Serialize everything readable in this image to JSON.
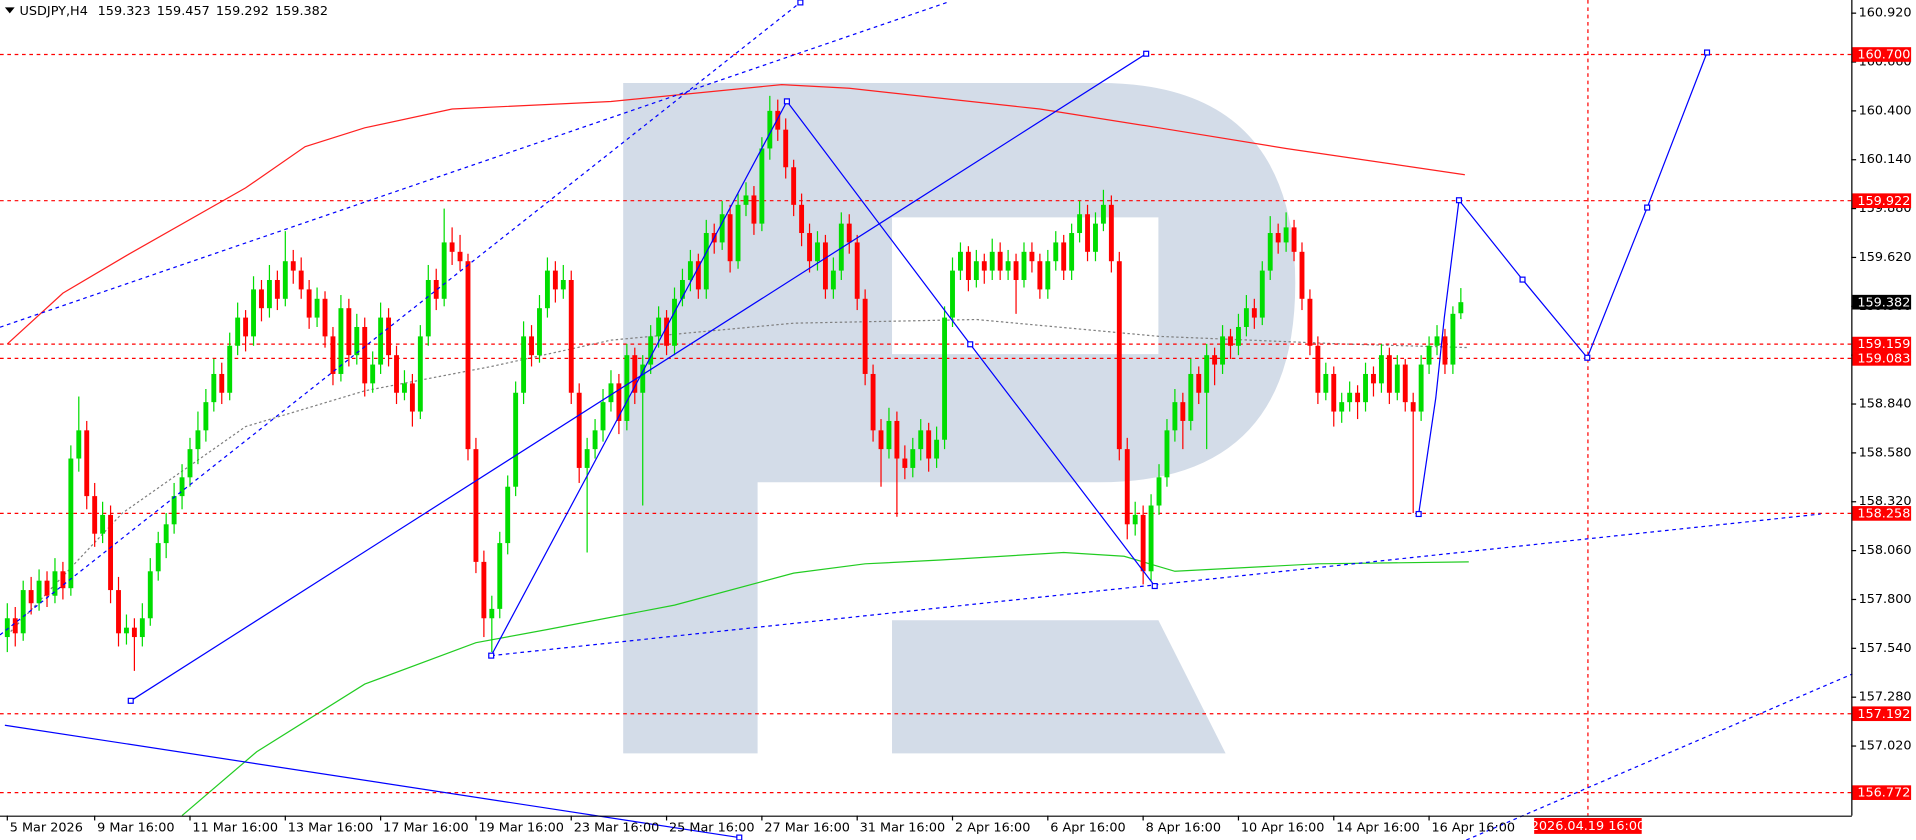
{
  "chart_data": {
    "type": "candlestick",
    "symbol": "USDJPY,H4",
    "up_color": "#00dd00",
    "down_color": "#ff0000",
    "xlim": [
      -0.92,
      232.15
    ],
    "ylim": [
      156.65,
      160.99
    ],
    "xticks": [
      {
        "value": 0,
        "label": "5 Mar 2026"
      },
      {
        "value": 11,
        "label": "9 Mar 16:00"
      },
      {
        "value": 23,
        "label": "11 Mar 16:00"
      },
      {
        "value": 35,
        "label": "13 Mar 16:00"
      },
      {
        "value": 47,
        "label": "17 Mar 16:00"
      },
      {
        "value": 59,
        "label": "19 Mar 16:00"
      },
      {
        "value": 71,
        "label": "23 Mar 16:00"
      },
      {
        "value": 83,
        "label": "25 Mar 16:00"
      },
      {
        "value": 95,
        "label": "27 Mar 16:00"
      },
      {
        "value": 107,
        "label": "31 Mar 16:00"
      },
      {
        "value": 119,
        "label": "2 Apr 16:00"
      },
      {
        "value": 131,
        "label": "6 Apr 16:00"
      },
      {
        "value": 143,
        "label": "8 Apr 16:00"
      },
      {
        "value": 155,
        "label": "10 Apr 16:00"
      },
      {
        "value": 167,
        "label": "14 Apr 16:00"
      },
      {
        "value": 179,
        "label": "16 Apr 16:00"
      }
    ],
    "yticks": [
      {
        "value": 160.92,
        "label": "160.920"
      },
      {
        "value": 160.66,
        "label": "160.660"
      },
      {
        "value": 160.4,
        "label": "160.400"
      },
      {
        "value": 160.14,
        "label": "160.140"
      },
      {
        "value": 159.88,
        "label": "159.880"
      },
      {
        "value": 159.62,
        "label": "159.620"
      },
      {
        "value": 159.36,
        "label": "159.360"
      },
      {
        "value": 159.1,
        "label": "159.100"
      },
      {
        "value": 158.84,
        "label": "158.840"
      },
      {
        "value": 158.58,
        "label": "158.580"
      },
      {
        "value": 158.32,
        "label": "158.320"
      },
      {
        "value": 158.06,
        "label": "158.060"
      },
      {
        "value": 157.8,
        "label": "157.800"
      },
      {
        "value": 157.54,
        "label": "157.540"
      },
      {
        "value": 157.28,
        "label": "157.280"
      },
      {
        "value": 157.02,
        "label": "157.020"
      }
    ],
    "levels": [
      {
        "value": 160.7,
        "label": "160.700"
      },
      {
        "value": 159.922,
        "label": "159.922"
      },
      {
        "value": 159.159,
        "label": "159.159"
      },
      {
        "value": 159.083,
        "label": "159.083"
      },
      {
        "value": 158.258,
        "label": "158.258"
      },
      {
        "value": 157.192,
        "label": "157.192"
      },
      {
        "value": 156.772,
        "label": "156.772"
      }
    ],
    "level_color": "#ff0000",
    "vline": {
      "x": 199,
      "label": "2026.04.19 16:00"
    },
    "overlays": [
      {
        "color": "#ff2020",
        "style": "solid",
        "x": [
          0,
          7,
          15,
          30,
          37.5,
          45,
          56,
          76,
          97.5,
          106,
          130,
          145,
          161,
          183.5
        ],
        "values": [
          159.16,
          159.43,
          159.63,
          159.99,
          160.21,
          160.31,
          160.41,
          160.45,
          160.54,
          160.52,
          160.41,
          160.31,
          160.2,
          160.06
        ]
      },
      {
        "color": "#22cc22",
        "style": "solid",
        "x": [
          22,
          31.4,
          45,
          59,
          68,
          84,
          99,
          108,
          117.5,
          133,
          140.6,
          147,
          165,
          184
        ],
        "values": [
          156.65,
          156.99,
          157.35,
          157.57,
          157.64,
          157.77,
          157.94,
          157.99,
          158.01,
          158.05,
          158.03,
          157.95,
          157.99,
          158.0
        ]
      },
      {
        "color": "#808080",
        "style": "dotted",
        "x": [
          0,
          14.5,
          30,
          45,
          61,
          76,
          99,
          122,
          145,
          168,
          184
        ],
        "values": [
          157.61,
          158.26,
          158.72,
          158.91,
          159.04,
          159.18,
          159.27,
          159.29,
          159.2,
          159.16,
          159.14
        ]
      }
    ],
    "candles": [
      [
        157.6,
        157.78,
        157.52,
        157.7
      ],
      [
        157.7,
        157.76,
        157.55,
        157.62
      ],
      [
        157.62,
        157.9,
        157.58,
        157.85
      ],
      [
        157.85,
        157.92,
        157.72,
        157.78
      ],
      [
        157.78,
        157.96,
        157.74,
        157.9
      ],
      [
        157.9,
        157.95,
        157.76,
        157.82
      ],
      [
        157.82,
        158.02,
        157.78,
        157.95
      ],
      [
        157.95,
        158.0,
        157.8,
        157.86
      ],
      [
        157.86,
        158.62,
        157.82,
        158.55
      ],
      [
        158.55,
        158.88,
        158.48,
        158.7
      ],
      [
        158.7,
        158.75,
        158.28,
        158.35
      ],
      [
        158.35,
        158.42,
        158.08,
        158.15
      ],
      [
        158.15,
        158.32,
        158.1,
        158.25
      ],
      [
        158.25,
        158.3,
        157.78,
        157.85
      ],
      [
        157.85,
        157.92,
        157.55,
        157.62
      ],
      [
        157.62,
        157.72,
        157.56,
        157.65
      ],
      [
        157.65,
        157.7,
        157.42,
        157.6
      ],
      [
        157.6,
        157.78,
        157.55,
        157.7
      ],
      [
        157.7,
        158.02,
        157.66,
        157.95
      ],
      [
        157.95,
        158.16,
        157.9,
        158.1
      ],
      [
        158.1,
        158.26,
        158.02,
        158.2
      ],
      [
        158.2,
        158.42,
        158.15,
        158.35
      ],
      [
        158.35,
        158.52,
        158.28,
        158.45
      ],
      [
        158.45,
        158.66,
        158.4,
        158.6
      ],
      [
        158.6,
        158.8,
        158.52,
        158.7
      ],
      [
        158.7,
        158.92,
        158.64,
        158.85
      ],
      [
        158.85,
        159.08,
        158.8,
        159.0
      ],
      [
        159.0,
        159.06,
        158.84,
        158.9
      ],
      [
        158.9,
        159.22,
        158.86,
        159.15
      ],
      [
        159.15,
        159.38,
        159.1,
        159.3
      ],
      [
        159.3,
        159.34,
        159.12,
        159.2
      ],
      [
        159.2,
        159.52,
        159.15,
        159.45
      ],
      [
        159.45,
        159.5,
        159.28,
        159.35
      ],
      [
        159.35,
        159.58,
        159.3,
        159.5
      ],
      [
        159.5,
        159.55,
        159.34,
        159.4
      ],
      [
        159.4,
        159.76,
        159.36,
        159.6
      ],
      [
        159.6,
        159.66,
        159.48,
        159.55
      ],
      [
        159.55,
        159.62,
        159.4,
        159.45
      ],
      [
        159.45,
        159.5,
        159.24,
        159.3
      ],
      [
        159.3,
        159.46,
        159.25,
        159.4
      ],
      [
        159.4,
        159.44,
        159.14,
        159.2
      ],
      [
        159.2,
        159.25,
        158.94,
        159.0
      ],
      [
        159.0,
        159.42,
        158.96,
        159.35
      ],
      [
        159.35,
        159.4,
        159.04,
        159.1
      ],
      [
        159.1,
        159.32,
        159.05,
        159.25
      ],
      [
        159.25,
        159.3,
        158.88,
        158.95
      ],
      [
        158.95,
        159.12,
        158.9,
        159.05
      ],
      [
        159.05,
        159.38,
        159.0,
        159.3
      ],
      [
        159.3,
        159.35,
        159.04,
        159.1
      ],
      [
        159.1,
        159.15,
        158.84,
        158.9
      ],
      [
        158.9,
        159.02,
        158.86,
        158.95
      ],
      [
        158.95,
        159.0,
        158.72,
        158.8
      ],
      [
        158.8,
        159.26,
        158.76,
        159.2
      ],
      [
        159.2,
        159.58,
        159.15,
        159.5
      ],
      [
        159.5,
        159.56,
        159.34,
        159.4
      ],
      [
        159.4,
        159.88,
        159.36,
        159.7
      ],
      [
        159.7,
        159.78,
        159.58,
        159.65
      ],
      [
        159.65,
        159.74,
        159.55,
        159.6
      ],
      [
        159.6,
        159.64,
        158.54,
        158.6
      ],
      [
        158.6,
        158.66,
        157.94,
        158.0
      ],
      [
        158.0,
        158.06,
        157.6,
        157.7
      ],
      [
        157.7,
        157.82,
        157.52,
        157.75
      ],
      [
        157.75,
        158.16,
        157.7,
        158.1
      ],
      [
        158.1,
        158.46,
        158.04,
        158.4
      ],
      [
        158.4,
        158.96,
        158.35,
        158.9
      ],
      [
        158.9,
        159.28,
        158.84,
        159.2
      ],
      [
        159.2,
        159.26,
        159.04,
        159.1
      ],
      [
        159.1,
        159.42,
        159.06,
        159.35
      ],
      [
        159.35,
        159.62,
        159.3,
        159.55
      ],
      [
        159.55,
        159.6,
        159.38,
        159.45
      ],
      [
        159.45,
        159.58,
        159.4,
        159.5
      ],
      [
        159.5,
        159.55,
        158.84,
        158.9
      ],
      [
        158.9,
        158.95,
        158.42,
        158.5
      ],
      [
        158.5,
        158.66,
        158.05,
        158.6
      ],
      [
        158.6,
        158.76,
        158.55,
        158.7
      ],
      [
        158.7,
        158.92,
        158.64,
        158.85
      ],
      [
        158.85,
        159.02,
        158.8,
        158.95
      ],
      [
        158.95,
        159.0,
        158.68,
        158.75
      ],
      [
        158.75,
        159.16,
        158.7,
        159.1
      ],
      [
        159.1,
        159.14,
        158.84,
        158.9
      ],
      [
        158.9,
        159.1,
        158.3,
        159.05
      ],
      [
        159.05,
        159.26,
        159.0,
        159.2
      ],
      [
        159.2,
        159.36,
        159.14,
        159.3
      ],
      [
        159.3,
        159.34,
        159.1,
        159.15
      ],
      [
        159.15,
        159.46,
        159.1,
        159.4
      ],
      [
        159.4,
        159.56,
        159.36,
        159.5
      ],
      [
        159.5,
        159.66,
        159.44,
        159.6
      ],
      [
        159.6,
        159.64,
        159.4,
        159.45
      ],
      [
        159.45,
        159.82,
        159.4,
        159.75
      ],
      [
        159.75,
        159.8,
        159.64,
        159.7
      ],
      [
        159.7,
        159.92,
        159.66,
        159.85
      ],
      [
        159.85,
        159.9,
        159.54,
        159.6
      ],
      [
        159.6,
        159.96,
        159.56,
        159.9
      ],
      [
        159.9,
        160.02,
        159.84,
        159.95
      ],
      [
        159.95,
        160.0,
        159.74,
        159.8
      ],
      [
        159.8,
        160.26,
        159.76,
        160.2
      ],
      [
        160.2,
        160.48,
        160.14,
        160.4
      ],
      [
        160.4,
        160.46,
        160.24,
        160.3
      ],
      [
        160.3,
        160.36,
        160.04,
        160.1
      ],
      [
        160.1,
        160.14,
        159.84,
        159.9
      ],
      [
        159.9,
        159.96,
        159.68,
        159.75
      ],
      [
        159.75,
        159.8,
        159.54,
        159.6
      ],
      [
        159.6,
        159.76,
        159.55,
        159.7
      ],
      [
        159.7,
        159.74,
        159.4,
        159.45
      ],
      [
        159.45,
        159.62,
        159.4,
        159.55
      ],
      [
        159.55,
        159.86,
        159.5,
        159.8
      ],
      [
        159.8,
        159.85,
        159.64,
        159.7
      ],
      [
        159.7,
        159.74,
        159.34,
        159.4
      ],
      [
        159.4,
        159.45,
        158.94,
        159.0
      ],
      [
        159.0,
        159.05,
        158.64,
        158.7
      ],
      [
        158.7,
        158.76,
        158.4,
        158.6
      ],
      [
        158.6,
        158.82,
        158.55,
        158.75
      ],
      [
        158.75,
        158.8,
        158.24,
        158.55
      ],
      [
        158.55,
        158.62,
        158.44,
        158.5
      ],
      [
        158.5,
        158.66,
        158.45,
        158.6
      ],
      [
        158.6,
        158.76,
        158.54,
        158.7
      ],
      [
        158.7,
        158.74,
        158.48,
        158.55
      ],
      [
        158.55,
        158.72,
        158.5,
        158.65
      ],
      [
        158.65,
        159.36,
        158.6,
        159.3
      ],
      [
        159.3,
        159.62,
        159.25,
        159.55
      ],
      [
        159.55,
        159.7,
        159.5,
        159.65
      ],
      [
        159.65,
        159.68,
        159.44,
        159.5
      ],
      [
        159.5,
        159.66,
        159.46,
        159.6
      ],
      [
        159.6,
        159.64,
        159.48,
        159.55
      ],
      [
        159.55,
        159.72,
        159.5,
        159.65
      ],
      [
        159.65,
        159.7,
        159.5,
        159.55
      ],
      [
        159.55,
        159.66,
        159.5,
        159.6
      ],
      [
        159.6,
        159.64,
        159.32,
        159.5
      ],
      [
        159.5,
        159.7,
        159.46,
        159.65
      ],
      [
        159.65,
        159.7,
        159.54,
        159.6
      ],
      [
        159.6,
        159.64,
        159.4,
        159.45
      ],
      [
        159.45,
        159.66,
        159.4,
        159.6
      ],
      [
        159.6,
        159.76,
        159.55,
        159.7
      ],
      [
        159.7,
        159.74,
        159.5,
        159.55
      ],
      [
        159.55,
        159.8,
        159.5,
        159.75
      ],
      [
        159.75,
        159.92,
        159.7,
        159.85
      ],
      [
        159.85,
        159.9,
        159.6,
        159.65
      ],
      [
        159.65,
        159.86,
        159.6,
        159.8
      ],
      [
        159.8,
        159.98,
        159.76,
        159.9
      ],
      [
        159.9,
        159.95,
        159.54,
        159.6
      ],
      [
        159.6,
        159.65,
        158.54,
        158.6
      ],
      [
        158.6,
        158.66,
        158.12,
        158.2
      ],
      [
        158.2,
        158.32,
        158.14,
        158.25
      ],
      [
        158.25,
        158.3,
        157.88,
        157.95
      ],
      [
        157.95,
        158.36,
        157.9,
        158.3
      ],
      [
        158.3,
        158.52,
        158.25,
        158.45
      ],
      [
        158.45,
        158.76,
        158.4,
        158.7
      ],
      [
        158.7,
        158.92,
        158.64,
        158.85
      ],
      [
        158.85,
        158.9,
        158.6,
        158.75
      ],
      [
        158.75,
        159.08,
        158.7,
        159.0
      ],
      [
        159.0,
        159.04,
        158.84,
        158.9
      ],
      [
        158.9,
        159.16,
        158.6,
        159.1
      ],
      [
        159.1,
        159.14,
        158.94,
        159.05
      ],
      [
        159.05,
        159.26,
        159.0,
        159.2
      ],
      [
        159.2,
        159.24,
        159.08,
        159.15
      ],
      [
        159.15,
        159.32,
        159.1,
        159.25
      ],
      [
        159.25,
        159.42,
        159.2,
        159.35
      ],
      [
        159.35,
        159.4,
        159.24,
        159.3
      ],
      [
        159.3,
        159.6,
        159.26,
        159.55
      ],
      [
        159.55,
        159.84,
        159.5,
        159.75
      ],
      [
        159.75,
        159.8,
        159.64,
        159.7
      ],
      [
        159.7,
        159.86,
        159.65,
        159.78
      ],
      [
        159.78,
        159.82,
        159.6,
        159.65
      ],
      [
        159.65,
        159.7,
        159.34,
        159.4
      ],
      [
        159.4,
        159.45,
        159.1,
        159.15
      ],
      [
        159.15,
        159.2,
        158.84,
        158.9
      ],
      [
        158.9,
        159.06,
        158.86,
        159.0
      ],
      [
        159.0,
        159.04,
        158.72,
        158.8
      ],
      [
        158.8,
        158.9,
        158.74,
        158.85
      ],
      [
        158.85,
        158.96,
        158.8,
        158.9
      ],
      [
        158.9,
        158.94,
        158.76,
        158.85
      ],
      [
        158.85,
        159.06,
        158.8,
        159.0
      ],
      [
        159.0,
        159.04,
        158.88,
        158.95
      ],
      [
        158.95,
        159.16,
        158.9,
        159.1
      ],
      [
        159.1,
        159.14,
        158.84,
        158.9
      ],
      [
        158.9,
        159.1,
        158.86,
        159.05
      ],
      [
        159.05,
        159.08,
        158.8,
        158.85
      ],
      [
        158.85,
        158.9,
        158.26,
        158.8
      ],
      [
        158.8,
        159.1,
        158.75,
        159.05
      ],
      [
        159.05,
        159.2,
        159.0,
        159.15
      ],
      [
        159.15,
        159.26,
        159.1,
        159.2
      ],
      [
        159.2,
        159.24,
        159.0,
        159.05
      ],
      [
        159.05,
        159.36,
        159.0,
        159.32
      ],
      [
        159.323,
        159.457,
        159.292,
        159.382
      ]
    ]
  }
}
